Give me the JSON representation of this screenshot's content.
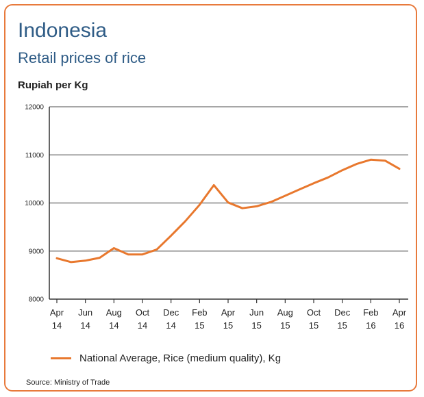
{
  "chart_data": {
    "type": "line",
    "title": "Indonesia",
    "subtitle": "Retail prices of rice",
    "ylabel": "Rupiah per Kg",
    "xlabel": "",
    "ylim": [
      8000,
      12000
    ],
    "yticks": [
      "8000",
      "9000",
      "10000",
      "11000",
      "12000"
    ],
    "xticks": [
      {
        "top": "Apr",
        "bottom": "14"
      },
      {
        "top": "Jun",
        "bottom": "14"
      },
      {
        "top": "Aug",
        "bottom": "14"
      },
      {
        "top": "Oct",
        "bottom": "14"
      },
      {
        "top": "Dec",
        "bottom": "14"
      },
      {
        "top": "Feb",
        "bottom": "15"
      },
      {
        "top": "Apr",
        "bottom": "15"
      },
      {
        "top": "Jun",
        "bottom": "15"
      },
      {
        "top": "Aug",
        "bottom": "15"
      },
      {
        "top": "Oct",
        "bottom": "15"
      },
      {
        "top": "Dec",
        "bottom": "15"
      },
      {
        "top": "Feb",
        "bottom": "16"
      },
      {
        "top": "Apr",
        "bottom": "16"
      }
    ],
    "x": [
      "Apr 14",
      "May 14",
      "Jun 14",
      "Jul 14",
      "Aug 14",
      "Sep 14",
      "Oct 14",
      "Nov 14",
      "Dec 14",
      "Jan 15",
      "Feb 15",
      "Mar 15",
      "Apr 15",
      "May 15",
      "Jun 15",
      "Jul 15",
      "Aug 15",
      "Sep 15",
      "Oct 15",
      "Nov 15",
      "Dec 15",
      "Jan 16",
      "Feb 16",
      "Mar 16",
      "Apr 16"
    ],
    "series": [
      {
        "name": "National Average, Rice (medium quality), Kg",
        "color": "#e8782e",
        "values": [
          8850,
          8770,
          8800,
          8860,
          9060,
          8930,
          8930,
          9030,
          9320,
          9620,
          9960,
          10370,
          10010,
          9890,
          9930,
          10020,
          10150,
          10280,
          10410,
          10530,
          10680,
          10810,
          10900,
          10880,
          10710
        ]
      }
    ],
    "grid": "horizontal",
    "legend_position": "bottom"
  },
  "source": "Source: Ministry of Trade"
}
